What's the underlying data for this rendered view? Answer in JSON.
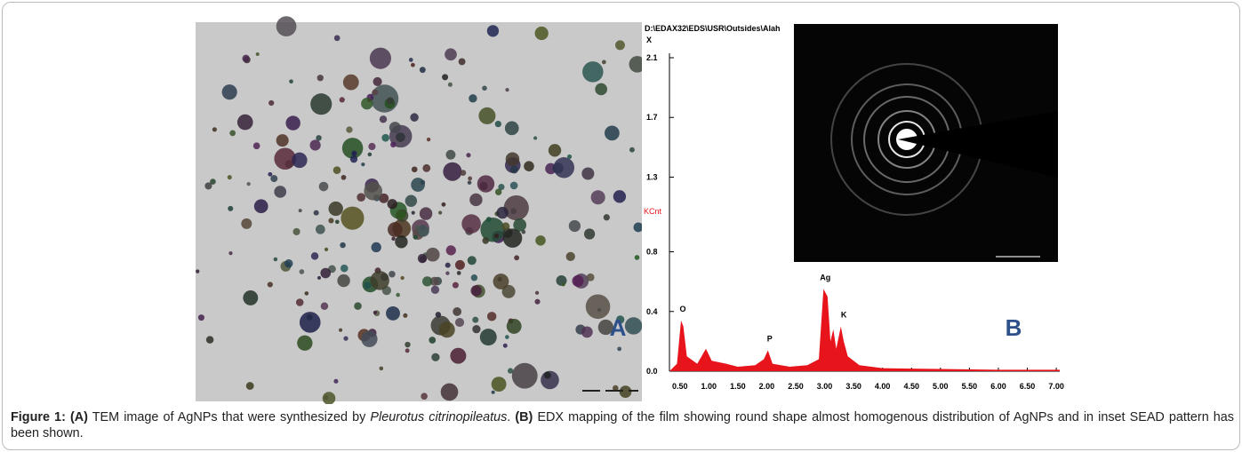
{
  "figure": {
    "panel_a": {
      "label": "A"
    },
    "panel_b": {
      "label": "B",
      "path_text": "D:\\EDAX32\\EDS\\USR\\Outsides\\Alah",
      "x_mark": "X",
      "y_unit": "KCnt",
      "spectrum": {
        "xlim": [
          0.32,
          7.06
        ],
        "ylim": [
          0,
          2.1
        ],
        "yticks": [
          {
            "value": 0,
            "label": "0.0"
          },
          0.4,
          0.8,
          1.3,
          1.7,
          2.1
        ],
        "xticks": [
          {
            "value": 0.5,
            "label": "0.50"
          },
          {
            "value": 1,
            "label": "1.00"
          },
          {
            "value": 1.5,
            "label": "1.50"
          },
          {
            "value": 2,
            "label": "2.00"
          },
          {
            "value": 2.5,
            "label": "2.50"
          },
          {
            "value": 3,
            "label": "3.00"
          },
          {
            "value": 3.5,
            "label": "3.50"
          },
          {
            "value": 4,
            "label": "4.00"
          },
          {
            "value": 4.5,
            "label": "4.50"
          },
          {
            "value": 5,
            "label": "5.00"
          },
          {
            "value": 5.5,
            "label": "5.50"
          },
          {
            "value": 6,
            "label": "6.00"
          },
          {
            "value": 6.5,
            "label": "6.50"
          },
          {
            "value": 7,
            "label": "7.00"
          }
        ],
        "color": "#e8141b",
        "x": [
          0.32,
          0.45,
          0.52,
          0.56,
          0.62,
          0.8,
          0.95,
          1.05,
          1.3,
          1.5,
          1.8,
          1.95,
          2.02,
          2.1,
          2.4,
          2.7,
          2.9,
          2.98,
          3.05,
          3.1,
          3.15,
          3.2,
          3.28,
          3.33,
          3.4,
          3.6,
          4.0,
          5.0,
          6.0,
          7.06
        ],
        "y": [
          0,
          0.05,
          0.34,
          0.3,
          0.1,
          0.05,
          0.15,
          0.07,
          0.05,
          0.03,
          0.04,
          0.08,
          0.14,
          0.05,
          0.03,
          0.04,
          0.08,
          0.55,
          0.5,
          0.2,
          0.28,
          0.15,
          0.3,
          0.2,
          0.1,
          0.04,
          0.02,
          0.015,
          0.01,
          0.01
        ],
        "peaks": [
          {
            "label": "O",
            "x": 0.52,
            "y": 0.4
          },
          {
            "label": "P",
            "x": 2.02,
            "y": 0.2
          },
          {
            "label": "Ag",
            "x": 2.98,
            "y": 0.61
          },
          {
            "label": "K",
            "x": 3.3,
            "y": 0.36
          }
        ]
      }
    },
    "caption": [
      {
        "text": "Figure 1: (A)",
        "style": "bold"
      },
      {
        "text": " TEM image of AgNPs that were synthesized by ",
        "style": "normal"
      },
      {
        "text": "Pleurotus citrinopileatus",
        "style": "italic"
      },
      {
        "text": ". ",
        "style": "normal"
      },
      {
        "text": "(B)",
        "style": "bold"
      },
      {
        "text": " EDX mapping of the film showing round shape almost homogenous distribution of AgNPs and in inset SEAD pattern has been shown.",
        "style": "normal"
      }
    ]
  }
}
